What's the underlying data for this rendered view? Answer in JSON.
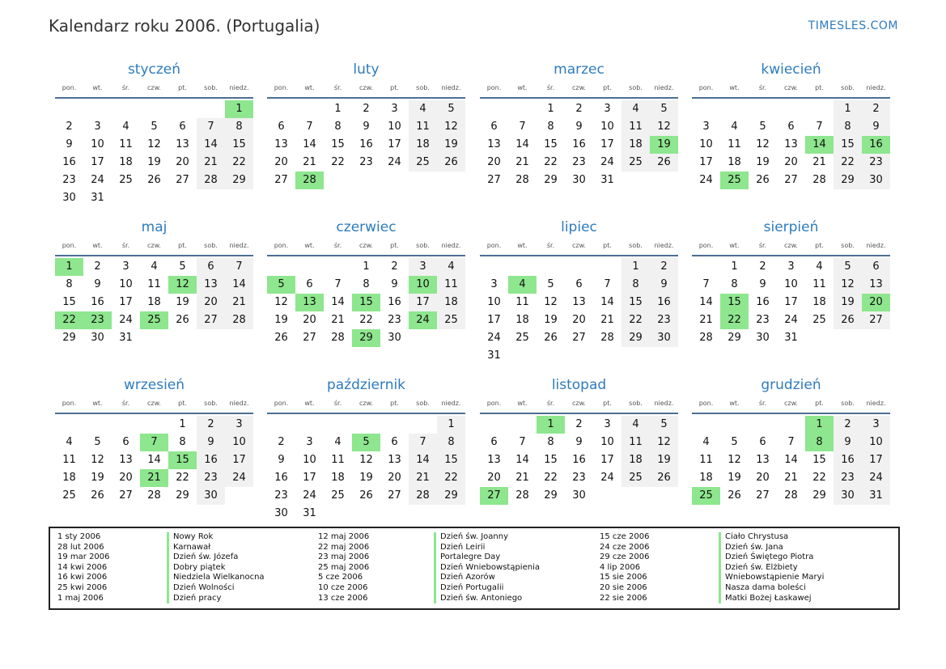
{
  "header": {
    "title": "Kalendarz roku 2006. (Portugalia)",
    "brand": "TIMESLES.COM"
  },
  "weekdays": [
    "pon.",
    "wt.",
    "śr.",
    "czw.",
    "pt.",
    "sob.",
    "niedz."
  ],
  "months": [
    {
      "name": "styczeń",
      "offset": 6,
      "days": 31,
      "holidays": [
        1
      ]
    },
    {
      "name": "luty",
      "offset": 2,
      "days": 28,
      "holidays": [
        28
      ]
    },
    {
      "name": "marzec",
      "offset": 2,
      "days": 31,
      "holidays": [
        19
      ]
    },
    {
      "name": "kwiecień",
      "offset": 5,
      "days": 30,
      "holidays": [
        14,
        16,
        25
      ]
    },
    {
      "name": "maj",
      "offset": 0,
      "days": 31,
      "holidays": [
        1,
        12,
        22,
        23,
        25
      ]
    },
    {
      "name": "czerwiec",
      "offset": 3,
      "days": 30,
      "holidays": [
        5,
        10,
        13,
        15,
        24,
        29
      ]
    },
    {
      "name": "lipiec",
      "offset": 5,
      "days": 31,
      "holidays": [
        4
      ]
    },
    {
      "name": "sierpień",
      "offset": 1,
      "days": 31,
      "holidays": [
        15,
        20,
        22
      ]
    },
    {
      "name": "wrzesień",
      "offset": 4,
      "days": 30,
      "holidays": [
        7,
        15,
        21
      ]
    },
    {
      "name": "październik",
      "offset": 6,
      "days": 31,
      "holidays": [
        5
      ]
    },
    {
      "name": "listopad",
      "offset": 2,
      "days": 30,
      "holidays": [
        1,
        27
      ]
    },
    {
      "name": "grudzień",
      "offset": 4,
      "days": 31,
      "holidays": [
        1,
        8,
        25
      ]
    }
  ],
  "holidays_list": [
    [
      {
        "date": "1 sty 2006",
        "name": "Nowy Rok"
      },
      {
        "date": "28 lut 2006",
        "name": "Karnawał"
      },
      {
        "date": "19 mar 2006",
        "name": "Dzień św. Józefa"
      },
      {
        "date": "14 kwi 2006",
        "name": "Dobry piątek"
      },
      {
        "date": "16 kwi 2006",
        "name": "Niedziela Wielkanocna"
      },
      {
        "date": "25 kwi 2006",
        "name": "Dzień Wolności"
      },
      {
        "date": "1 maj 2006",
        "name": "Dzień pracy"
      }
    ],
    [
      {
        "date": "12 maj 2006",
        "name": "Dzień św. Joanny"
      },
      {
        "date": "22 maj 2006",
        "name": "Dzień Leirii"
      },
      {
        "date": "23 maj 2006",
        "name": "Portalegre Day"
      },
      {
        "date": "25 maj 2006",
        "name": "Dzień Wniebowstąpienia"
      },
      {
        "date": "5 cze 2006",
        "name": "Dzień Azorów"
      },
      {
        "date": "10 cze 2006",
        "name": "Dzień Portugalii"
      },
      {
        "date": "13 cze 2006",
        "name": "Dzień św. Antoniego"
      }
    ],
    [
      {
        "date": "15 cze 2006",
        "name": "Ciało Chrystusa"
      },
      {
        "date": "24 cze 2006",
        "name": "Dzień św. Jana"
      },
      {
        "date": "29 cze 2006",
        "name": "Dzień Świętego Piotra"
      },
      {
        "date": "4 lip 2006",
        "name": "Dzień św. Elżbiety"
      },
      {
        "date": "15 sie 2006",
        "name": "Wniebowstąpienie Maryi"
      },
      {
        "date": "20 sie 2006",
        "name": "Nasza dama boleści"
      },
      {
        "date": "22 sie 2006",
        "name": "Matki Bożej Łaskawej"
      }
    ]
  ],
  "colors": {
    "accent": "#2e7bbd",
    "holiday": "#8ee68e",
    "weekend": "#f1f1f1"
  }
}
